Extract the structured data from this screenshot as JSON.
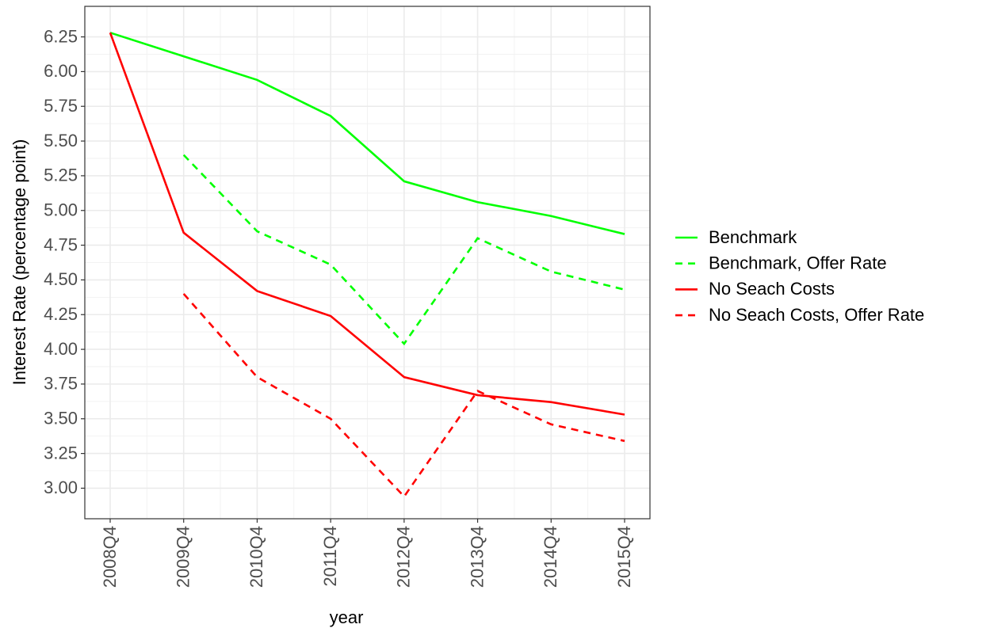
{
  "chart_data": {
    "type": "line",
    "y_label": "Interest Rate (percentage point)",
    "x_label": "year",
    "categories": [
      "2008Q4",
      "2009Q4",
      "2010Q4",
      "2011Q4",
      "2012Q4",
      "2013Q4",
      "2014Q4",
      "2015Q4"
    ],
    "series": [
      {
        "name": "Benchmark",
        "color": "#00ff00",
        "linetype": "solid",
        "values": [
          6.28,
          6.11,
          5.94,
          5.68,
          5.21,
          5.06,
          4.96,
          4.83
        ]
      },
      {
        "name": "Benchmark, Offer Rate",
        "color": "#00ff00",
        "linetype": "dashed",
        "values": [
          null,
          5.4,
          4.85,
          4.61,
          4.04,
          4.8,
          4.56,
          4.43
        ]
      },
      {
        "name": "No Seach Costs",
        "color": "#ff0000",
        "linetype": "solid",
        "values": [
          6.28,
          4.84,
          4.42,
          4.24,
          3.8,
          3.67,
          3.62,
          3.53
        ]
      },
      {
        "name": "No Seach Costs, Offer Rate",
        "color": "#ff0000",
        "linetype": "dashed",
        "values": [
          null,
          4.4,
          3.8,
          3.5,
          2.94,
          3.7,
          3.46,
          3.34
        ]
      }
    ],
    "ylim": [
      2.78,
      6.47
    ],
    "yticks": [
      {
        "value": 3,
        "label": "3.00"
      },
      3.25,
      {
        "value": 3.5,
        "label": "3.50"
      },
      3.75,
      {
        "value": 4,
        "label": "4.00"
      },
      4.25,
      {
        "value": 4.5,
        "label": "4.50"
      },
      4.75,
      {
        "value": 5,
        "label": "5.00"
      },
      5.25,
      {
        "value": 5.5,
        "label": "5.50"
      },
      5.75,
      {
        "value": 6,
        "label": "6.00"
      },
      6.25
    ],
    "grid": true,
    "legend": "right"
  }
}
